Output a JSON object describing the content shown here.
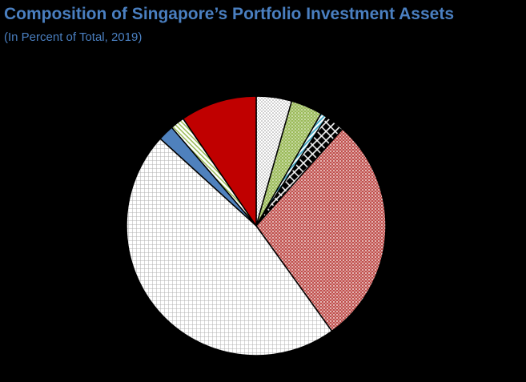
{
  "title": "Composition of Singapore’s Portfolio Investment Assets",
  "subtitle": "(In Percent of Total, 2019)",
  "colors": {
    "title": "#4a7fc0",
    "background": "#000000"
  },
  "chart_data": {
    "type": "pie",
    "title": "Composition of Singapore’s Portfolio Investment Assets",
    "subtitle": "(In Percent of Total, 2019)",
    "legend": "none",
    "slices": [
      {
        "value": 4.5,
        "color": "#ffffff",
        "pattern": "dots-light"
      },
      {
        "value": 4.0,
        "color": "#9bbb59",
        "pattern": "dots-green"
      },
      {
        "value": 0.8,
        "color": "#4bacc6",
        "pattern": "diagonal-blue"
      },
      {
        "value": 2.5,
        "color": "#000000",
        "pattern": "checker-black"
      },
      {
        "value": 29.0,
        "color": "#c0504d",
        "pattern": "dots-red"
      },
      {
        "value": 47.5,
        "color": "#ffffff",
        "pattern": "grid"
      },
      {
        "value": 2.0,
        "color": "#4f81bd",
        "pattern": "solid-blue"
      },
      {
        "value": 1.8,
        "color": "#9bbb59",
        "pattern": "diagonal-green"
      },
      {
        "value": 9.7,
        "color": "#c00000",
        "pattern": "solid-red"
      }
    ]
  }
}
